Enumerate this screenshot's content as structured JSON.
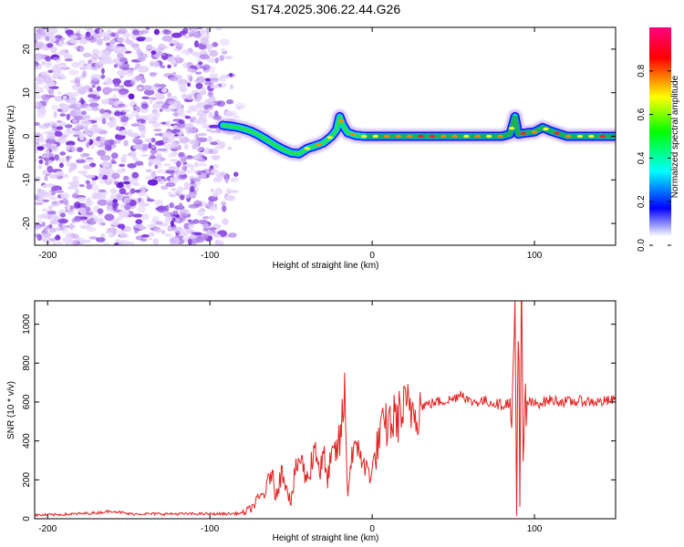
{
  "title": "S174.2025.306.22.44.G26",
  "chart_data": [
    {
      "type": "heatmap",
      "panel": "spectrogram",
      "xlabel": "Height of straight line (km)",
      "ylabel": "Frequency (Hz)",
      "xlim": [
        -208,
        150
      ],
      "ylim": [
        -25,
        25
      ],
      "xticks": [
        -200,
        -100,
        0,
        100
      ],
      "xtick_labels": [
        "-200",
        "-100",
        "0",
        "100"
      ],
      "yticks": [
        -20,
        -10,
        0,
        10,
        20
      ],
      "ytick_labels": [
        "-20",
        "-10",
        "0",
        "10",
        "20"
      ],
      "noise_region_x": [
        -208,
        -80
      ],
      "ridge": {
        "x": [
          -92,
          -85,
          -80,
          -75,
          -70,
          -65,
          -60,
          -55,
          -50,
          -45,
          -40,
          -35,
          -30,
          -25,
          -22,
          -20,
          -18,
          -15,
          -10,
          -5,
          0,
          20,
          40,
          60,
          80,
          85,
          88,
          90,
          95,
          100,
          105,
          110,
          115,
          120,
          140,
          150
        ],
        "y": [
          2.5,
          2.2,
          1.8,
          1.2,
          0.3,
          -0.8,
          -2.0,
          -3.0,
          -3.8,
          -4.0,
          -2.8,
          -2.2,
          -1.5,
          0.0,
          1.5,
          4.5,
          2.5,
          0.8,
          0.2,
          0.0,
          0.0,
          0.0,
          0.0,
          0.0,
          0.0,
          0.5,
          4.5,
          0.5,
          0.8,
          1.0,
          2.0,
          1.2,
          0.6,
          0.0,
          0.0,
          0.0
        ]
      },
      "colorbar": {
        "label": "Normalized spectral amplitude",
        "range": [
          0.0,
          1.0
        ],
        "ticks": [
          0.0,
          0.2,
          0.4,
          0.6,
          0.8
        ],
        "tick_labels": [
          "0.0",
          "0.2",
          "0.4",
          "0.6",
          "0.8"
        ],
        "colors": [
          "#ffffff",
          "#0000ff",
          "#00ffff",
          "#00ff00",
          "#ffff00",
          "#ff0000",
          "#ff0080"
        ]
      }
    },
    {
      "type": "line",
      "panel": "snr",
      "xlabel": "Height of straight line (km)",
      "ylabel": "SNR (10 * v/v)",
      "xlim": [
        -208,
        150
      ],
      "ylim": [
        0,
        1120
      ],
      "xticks": [
        -200,
        -100,
        0,
        100
      ],
      "xtick_labels": [
        "-200",
        "-100",
        "0",
        "100"
      ],
      "yticks": [
        0,
        200,
        400,
        600,
        800,
        1000
      ],
      "ytick_labels": [
        "0",
        "200",
        "400",
        "600",
        "800",
        "1000"
      ],
      "series": [
        {
          "name": "SNR",
          "color": "#e32222",
          "x": [
            -208,
            -190,
            -170,
            -160,
            -150,
            -140,
            -120,
            -100,
            -90,
            -80,
            -75,
            -70,
            -65,
            -62,
            -60,
            -55,
            -50,
            -48,
            -45,
            -40,
            -35,
            -32,
            -30,
            -28,
            -25,
            -20,
            -17,
            -15,
            -12,
            -10,
            -8,
            -5,
            0,
            5,
            10,
            15,
            20,
            30,
            40,
            50,
            55,
            60,
            70,
            80,
            85,
            86,
            88,
            89,
            90,
            91,
            92,
            93,
            95,
            100,
            110,
            120,
            130,
            140,
            150
          ],
          "y": [
            18,
            22,
            30,
            40,
            25,
            25,
            25,
            25,
            25,
            28,
            50,
            100,
            150,
            260,
            120,
            250,
            80,
            200,
            320,
            200,
            380,
            240,
            330,
            200,
            300,
            390,
            630,
            130,
            380,
            310,
            390,
            260,
            240,
            440,
            490,
            520,
            560,
            580,
            600,
            615,
            650,
            600,
            605,
            585,
            600,
            400,
            1100,
            30,
            1070,
            60,
            960,
            300,
            600,
            590,
            610,
            600,
            605,
            600,
            610
          ]
        }
      ]
    }
  ]
}
